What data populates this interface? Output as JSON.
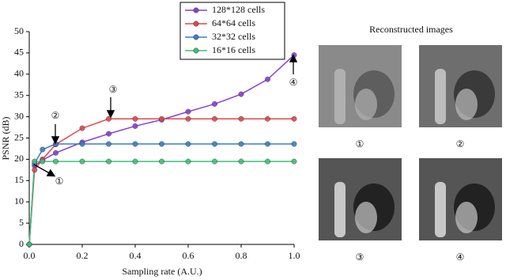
{
  "chart_data": {
    "type": "line",
    "x_label": "Sampling rate (A.U.)",
    "y_label": "PSNR (dB)",
    "x": [
      0,
      0.02,
      0.05,
      0.1,
      0.2,
      0.3,
      0.4,
      0.5,
      0.6,
      0.7,
      0.8,
      0.9,
      1.0
    ],
    "series": [
      {
        "name": "128*128 cells",
        "color": "#8a3fd6",
        "values": [
          0,
          18.5,
          19.8,
          21.5,
          24,
          26,
          27.8,
          29.3,
          31.2,
          33,
          35.3,
          38.8,
          44.5
        ]
      },
      {
        "name": "64*64 cells",
        "color": "#e0484b",
        "values": [
          0,
          17.5,
          20,
          23.5,
          27.3,
          29.5,
          29.5,
          29.5,
          29.5,
          29.5,
          29.5,
          29.5,
          29.5
        ]
      },
      {
        "name": "32*32 cells",
        "color": "#3a7fc8",
        "values": [
          0,
          19,
          22.3,
          23.6,
          23.6,
          23.6,
          23.6,
          23.6,
          23.6,
          23.6,
          23.6,
          23.6,
          23.6
        ]
      },
      {
        "name": "16*16 cells",
        "color": "#3fbf7a",
        "values": [
          0,
          19.5,
          19.5,
          19.5,
          19.5,
          19.5,
          19.5,
          19.5,
          19.5,
          19.5,
          19.5,
          19.5,
          19.5
        ]
      }
    ],
    "xlim": [
      0,
      1
    ],
    "xticks": [
      {
        "value": 0,
        "label": "0.0"
      },
      0.2,
      0.4,
      0.6,
      0.8,
      {
        "value": 1,
        "label": "1.0"
      }
    ],
    "ylim": [
      0,
      50
    ],
    "yticks": [
      0,
      5,
      10,
      15,
      20,
      25,
      30,
      35,
      40,
      45,
      50
    ],
    "annotations": [
      "①",
      "②",
      "③",
      "④"
    ]
  },
  "images": {
    "title": "Reconstructed images",
    "labels": [
      "①",
      "②",
      "③",
      "④"
    ]
  }
}
